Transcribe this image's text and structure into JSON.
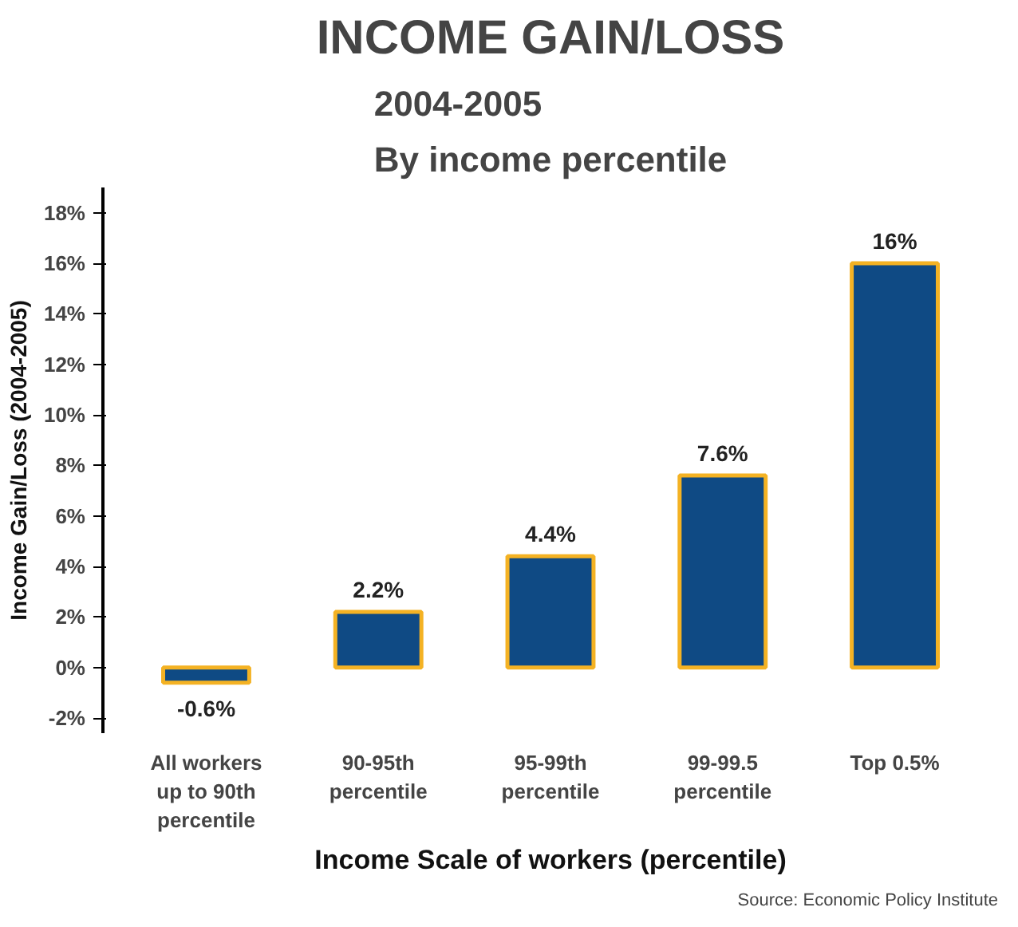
{
  "chart_data": {
    "type": "bar",
    "title": "INCOME GAIN/LOSS",
    "subtitle": "2004-2005\nBy income percentile",
    "categories": [
      "All workers\nup to 90th\npercentile",
      "90-95th\npercentile",
      "95-99th\npercentile",
      "99-99.5\npercentile",
      "Top 0.5%"
    ],
    "values": [
      -0.6,
      2.2,
      4.4,
      7.6,
      16
    ],
    "value_labels": [
      "-0.6%",
      "2.2%",
      "4.4%",
      "7.6%",
      "16%"
    ],
    "color": "#0f4a84",
    "ylim": [
      -2.6,
      19
    ],
    "yticks": [
      {
        "value": -2,
        "label": "-2%"
      },
      {
        "value": 0,
        "label": "0%"
      },
      {
        "value": 2,
        "label": "2%"
      },
      {
        "value": 4,
        "label": "4%"
      },
      {
        "value": 6,
        "label": "6%"
      },
      {
        "value": 8,
        "label": "8%"
      },
      {
        "value": 10,
        "label": "10%"
      },
      {
        "value": 12,
        "label": "12%"
      },
      {
        "value": 14,
        "label": "14%"
      },
      {
        "value": 16,
        "label": "16%"
      },
      {
        "value": 18,
        "label": "18%"
      }
    ],
    "xlabel": "Income Scale of workers (percentile)",
    "ylabel": "Income Gain/Loss (2004-2005)",
    "annotations": [
      "Source: Economic Policy Institute"
    ],
    "grid": false
  }
}
